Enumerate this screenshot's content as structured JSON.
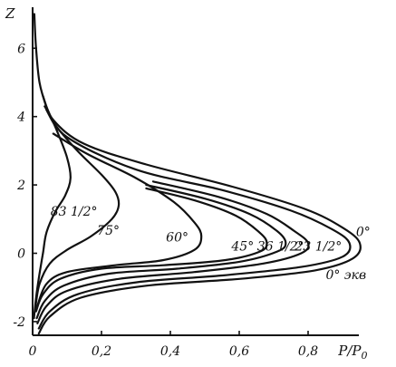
{
  "chart_data": {
    "type": "line",
    "title": "",
    "xlabel": "P/P_0",
    "ylabel": "Z",
    "xlim": [
      0,
      1.0
    ],
    "ylim": [
      -2.4,
      7.2
    ],
    "x_ticks": [
      "0",
      "0,2",
      "0,4",
      "0,6",
      "0,8"
    ],
    "x_tick_values": [
      0,
      0.2,
      0.4,
      0.6,
      0.8
    ],
    "y_ticks": [
      "6",
      "4",
      "2",
      "0",
      "-2"
    ],
    "y_tick_values": [
      6,
      4,
      2,
      0,
      -2
    ],
    "grid": false,
    "series": [
      {
        "name": "83 1/2°",
        "points": [
          [
            0.005,
            7.0
          ],
          [
            0.01,
            6.0
          ],
          [
            0.02,
            5.0
          ],
          [
            0.04,
            4.3
          ],
          [
            0.07,
            3.6
          ],
          [
            0.1,
            2.8
          ],
          [
            0.11,
            2.2
          ],
          [
            0.095,
            1.7
          ],
          [
            0.065,
            1.2
          ],
          [
            0.04,
            0.6
          ],
          [
            0.03,
            0.0
          ],
          [
            0.02,
            -0.6
          ],
          [
            0.01,
            -1.3
          ],
          [
            0.004,
            -1.9
          ]
        ]
      },
      {
        "name": "75°",
        "points": [
          [
            0.04,
            4.2
          ],
          [
            0.07,
            3.7
          ],
          [
            0.13,
            3.0
          ],
          [
            0.2,
            2.3
          ],
          [
            0.24,
            1.8
          ],
          [
            0.25,
            1.4
          ],
          [
            0.23,
            1.0
          ],
          [
            0.17,
            0.5
          ],
          [
            0.1,
            0.1
          ],
          [
            0.05,
            -0.3
          ],
          [
            0.02,
            -0.9
          ],
          [
            0.008,
            -1.6
          ]
        ]
      },
      {
        "name": "60°",
        "points": [
          [
            0.06,
            3.5
          ],
          [
            0.16,
            2.9
          ],
          [
            0.3,
            2.2
          ],
          [
            0.41,
            1.5
          ],
          [
            0.47,
            0.9
          ],
          [
            0.49,
            0.5
          ],
          [
            0.47,
            0.1
          ],
          [
            0.38,
            -0.2
          ],
          [
            0.24,
            -0.35
          ],
          [
            0.1,
            -0.55
          ],
          [
            0.04,
            -0.9
          ],
          [
            0.012,
            -1.6
          ]
        ]
      },
      {
        "name": "45°",
        "points": [
          [
            0.33,
            1.9
          ],
          [
            0.47,
            1.55
          ],
          [
            0.59,
            1.1
          ],
          [
            0.66,
            0.6
          ],
          [
            0.68,
            0.3
          ],
          [
            0.66,
            0.05
          ],
          [
            0.56,
            -0.2
          ],
          [
            0.38,
            -0.35
          ],
          [
            0.2,
            -0.45
          ],
          [
            0.08,
            -0.75
          ],
          [
            0.03,
            -1.2
          ],
          [
            0.01,
            -1.7
          ]
        ]
      },
      {
        "name": "36 1/2°",
        "points": [
          [
            0.33,
            2.0
          ],
          [
            0.5,
            1.6
          ],
          [
            0.63,
            1.15
          ],
          [
            0.71,
            0.65
          ],
          [
            0.735,
            0.3
          ],
          [
            0.71,
            0.05
          ],
          [
            0.6,
            -0.25
          ],
          [
            0.42,
            -0.45
          ],
          [
            0.22,
            -0.6
          ],
          [
            0.09,
            -0.95
          ],
          [
            0.035,
            -1.4
          ],
          [
            0.012,
            -1.9
          ]
        ]
      },
      {
        "name": "23 1/2°",
        "points": [
          [
            0.35,
            2.1
          ],
          [
            0.54,
            1.65
          ],
          [
            0.68,
            1.15
          ],
          [
            0.76,
            0.65
          ],
          [
            0.8,
            0.3
          ],
          [
            0.78,
            0.0
          ],
          [
            0.67,
            -0.3
          ],
          [
            0.47,
            -0.55
          ],
          [
            0.25,
            -0.75
          ],
          [
            0.1,
            -1.1
          ],
          [
            0.04,
            -1.55
          ],
          [
            0.014,
            -2.05
          ]
        ]
      },
      {
        "name": "0°",
        "points": [
          [
            0.035,
            4.3
          ],
          [
            0.1,
            3.4
          ],
          [
            0.3,
            2.45
          ],
          [
            0.55,
            1.85
          ],
          [
            0.75,
            1.25
          ],
          [
            0.87,
            0.7
          ],
          [
            0.92,
            0.3
          ],
          [
            0.9,
            -0.1
          ],
          [
            0.78,
            -0.4
          ],
          [
            0.55,
            -0.65
          ],
          [
            0.3,
            -0.85
          ],
          [
            0.13,
            -1.2
          ],
          [
            0.05,
            -1.7
          ],
          [
            0.018,
            -2.2
          ]
        ]
      },
      {
        "name": "0° экв",
        "points": [
          [
            0.03,
            4.6
          ],
          [
            0.06,
            3.9
          ],
          [
            0.15,
            3.2
          ],
          [
            0.33,
            2.6
          ],
          [
            0.58,
            1.95
          ],
          [
            0.79,
            1.3
          ],
          [
            0.9,
            0.75
          ],
          [
            0.95,
            0.3
          ],
          [
            0.93,
            -0.15
          ],
          [
            0.82,
            -0.5
          ],
          [
            0.6,
            -0.75
          ],
          [
            0.33,
            -0.95
          ],
          [
            0.14,
            -1.3
          ],
          [
            0.05,
            -1.85
          ],
          [
            0.018,
            -2.35
          ]
        ]
      }
    ],
    "labels": [
      {
        "series": 0,
        "text": "83 1/2°",
        "at": [
          0.12,
          1.1
        ]
      },
      {
        "series": 1,
        "text": "75°",
        "at": [
          0.22,
          0.55
        ]
      },
      {
        "series": 2,
        "text": "60°",
        "at": [
          0.42,
          0.35
        ]
      },
      {
        "series": 3,
        "text": "45°",
        "at": [
          0.61,
          0.08
        ]
      },
      {
        "series": 4,
        "text": "36 1/2°",
        "at": [
          0.72,
          0.08
        ]
      },
      {
        "series": 5,
        "text": "23 1/2°",
        "at": [
          0.83,
          0.08
        ]
      },
      {
        "series": 6,
        "text": "0°",
        "at": [
          0.96,
          0.5
        ]
      },
      {
        "series": 7,
        "text": "0° экв",
        "at": [
          0.91,
          -0.75
        ]
      }
    ]
  }
}
